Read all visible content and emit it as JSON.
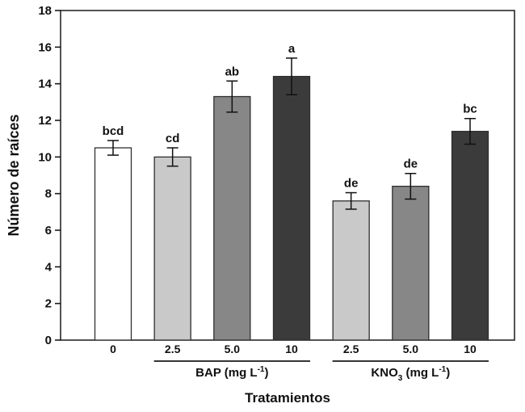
{
  "chart_data": {
    "type": "bar",
    "title": "",
    "xlabel": "Tratamientos",
    "ylabel": "Número de raíces",
    "ylim": [
      0,
      18
    ],
    "yticks": [
      0,
      2,
      4,
      6,
      8,
      10,
      12,
      14,
      16,
      18
    ],
    "grid": false,
    "legend": "none",
    "categories": [
      "0",
      "2.5",
      "5.0",
      "10",
      "2.5",
      "5.0",
      "10"
    ],
    "values": [
      10.5,
      10.0,
      13.3,
      14.4,
      7.6,
      8.4,
      11.4
    ],
    "errors": [
      0.4,
      0.5,
      0.85,
      1.0,
      0.45,
      0.7,
      0.7
    ],
    "sig_letters": [
      "bcd",
      "cd",
      "ab",
      "a",
      "de",
      "de",
      "bc"
    ],
    "bar_colors": [
      "#ffffff",
      "#c9c9c9",
      "#878787",
      "#3b3b3b",
      "#c9c9c9",
      "#878787",
      "#3b3b3b"
    ],
    "bar_edge_color": "#2f2f2f",
    "error_bar_color": "#111111",
    "frame_color": "#1a1a1a",
    "text_color": "#111111",
    "groups": [
      {
        "base": "BAP",
        "sub": "",
        "mid": " (mg L",
        "sup": "-1",
        "end": ")",
        "start_index": 1,
        "end_index": 3
      },
      {
        "base": "KNO",
        "sub": "3",
        "mid": " (mg L",
        "sup": "-1",
        "end": ")",
        "start_index": 4,
        "end_index": 6
      }
    ]
  }
}
